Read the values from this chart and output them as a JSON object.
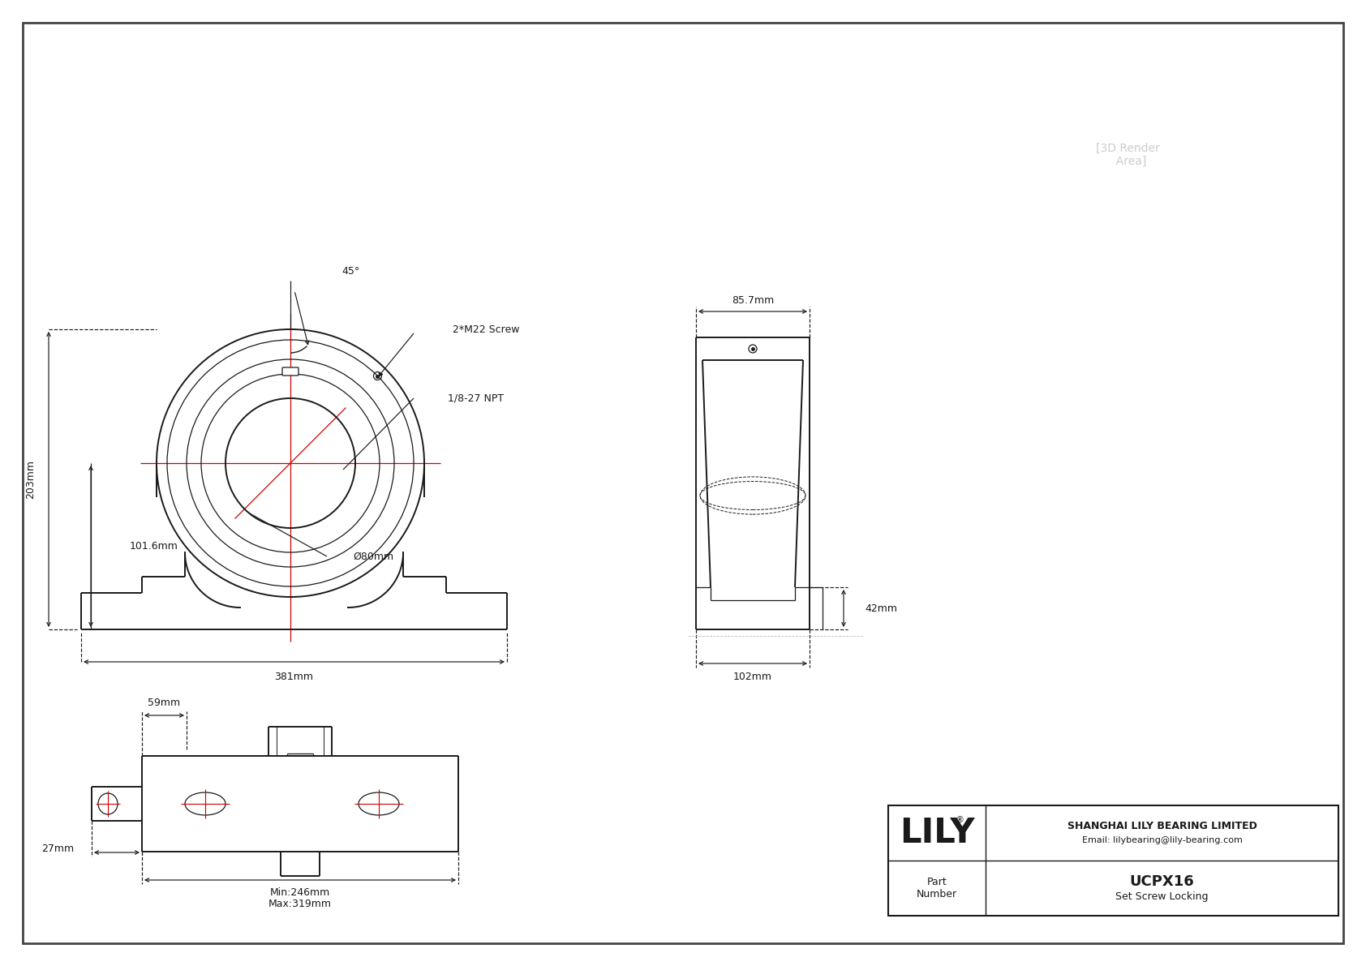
{
  "bg_color": "#ffffff",
  "lc": "#1a1a1a",
  "rc": "#cc0000",
  "logo": "LILY",
  "company_line1": "SHANGHAI LILY BEARING LIMITED",
  "company_line2": "Email: lilybearing@lily-bearing.com",
  "part_number": "UCPX16",
  "locking": "Set Screw Locking",
  "part_label": "Part\nNumber",
  "dim_203": "203mm",
  "dim_101": "101.6mm",
  "dim_381": "381mm",
  "dim_bore": "Ø80mm",
  "dim_45": "45°",
  "dim_screw": "2*M22 Screw",
  "dim_npt": "1/8-27 NPT",
  "dim_85": "85.7mm",
  "dim_42": "42mm",
  "dim_102": "102mm",
  "dim_59": "59mm",
  "dim_27": "27mm",
  "dim_min": "Min:246mm",
  "dim_max": "Max:319mm"
}
